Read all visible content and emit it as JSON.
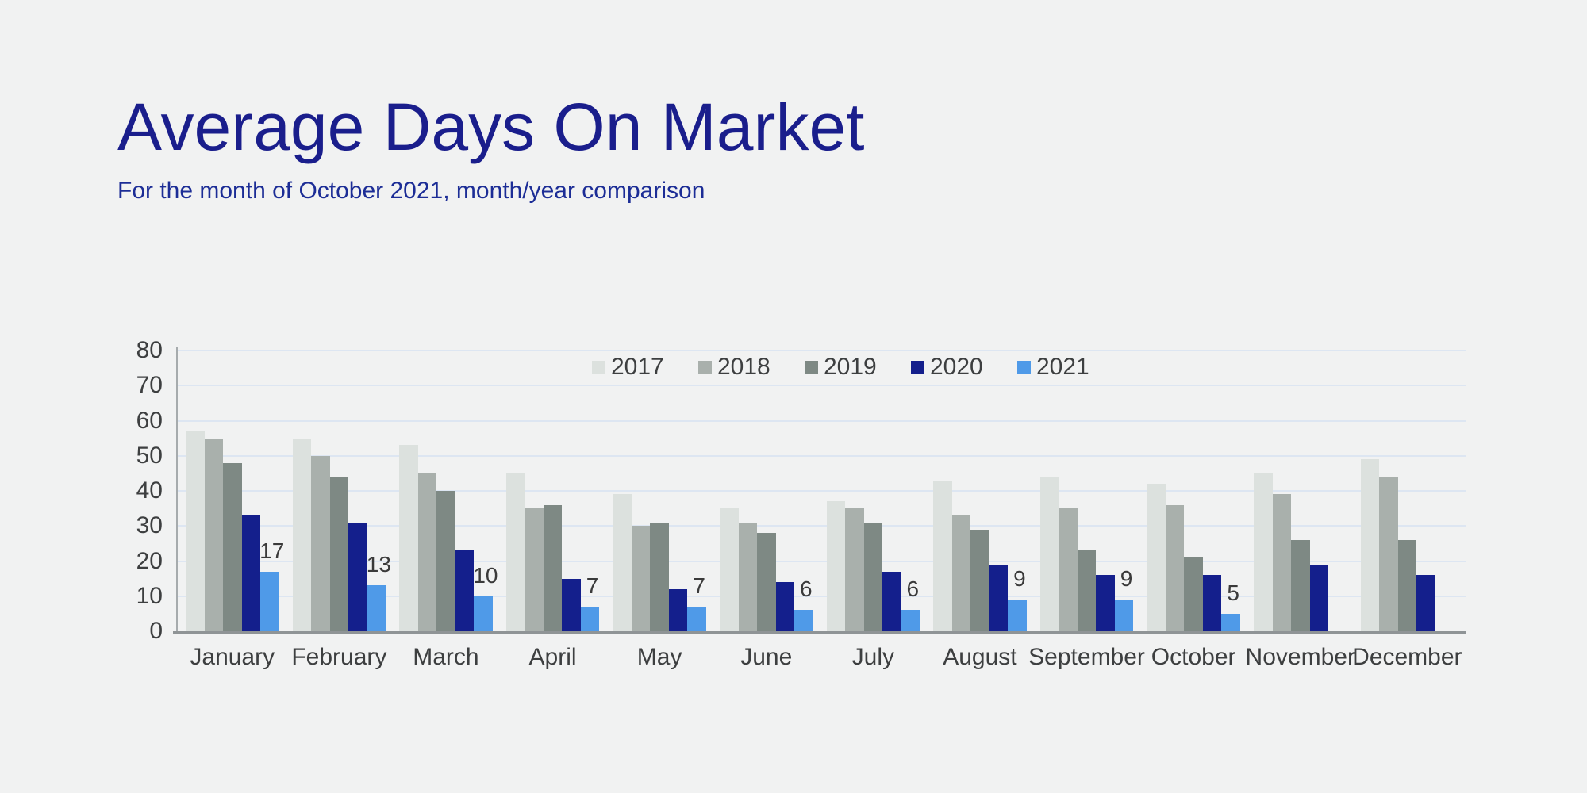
{
  "page": {
    "background_color": "#f1f2f2"
  },
  "header": {
    "title": "Average Days On Market",
    "subtitle": "For the month of October 2021, month/year comparison",
    "title_color": "#1a1e8c",
    "subtitle_color": "#1c2d96"
  },
  "chart_data": {
    "type": "bar",
    "title": "Average Days On Market",
    "xlabel": "",
    "ylabel": "",
    "ylim": [
      0,
      80
    ],
    "ytick_step": 10,
    "grid": true,
    "legend_position": "top",
    "categories": [
      "January",
      "February",
      "March",
      "April",
      "May",
      "June",
      "July",
      "August",
      "September",
      "October",
      "November",
      "December"
    ],
    "series": [
      {
        "name": "2017",
        "color": "#dce1de",
        "values": [
          57,
          55,
          53,
          45,
          39,
          35,
          37,
          43,
          44,
          42,
          45,
          49
        ]
      },
      {
        "name": "2018",
        "color": "#a9b0ac",
        "values": [
          55,
          50,
          45,
          35,
          30,
          31,
          35,
          33,
          35,
          36,
          39,
          44
        ]
      },
      {
        "name": "2019",
        "color": "#7e8984",
        "values": [
          48,
          44,
          40,
          36,
          31,
          28,
          31,
          29,
          23,
          21,
          26,
          26
        ]
      },
      {
        "name": "2020",
        "color": "#141f8c",
        "values": [
          33,
          31,
          23,
          15,
          12,
          14,
          17,
          19,
          16,
          16,
          19,
          16
        ]
      },
      {
        "name": "2021",
        "color": "#4f9ae8",
        "values": [
          17,
          13,
          10,
          7,
          7,
          6,
          6,
          9,
          9,
          5,
          null,
          null
        ],
        "show_data_labels": true
      }
    ],
    "data_label_color": "#3a3a3a"
  }
}
